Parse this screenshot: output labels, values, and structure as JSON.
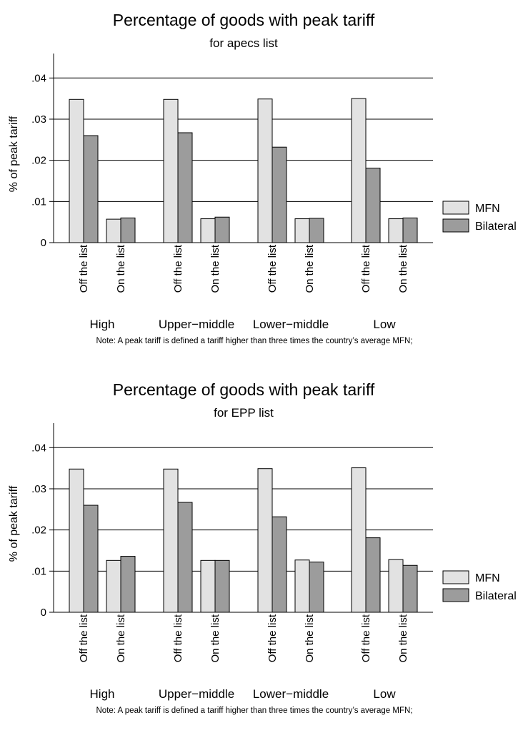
{
  "charts": [
    {
      "type": "bar",
      "title": "Percentage of goods with peak tariff",
      "subtitle": "for apecs list",
      "ylabel": "% of peak tariff",
      "yticks": [
        "0",
        ".01",
        ".02",
        ".03",
        ".04"
      ],
      "ylim": [
        0,
        0.043
      ],
      "groups": [
        {
          "name": "High",
          "categories": [
            {
              "label": "Off the list",
              "mfn": 0.0348,
              "bilateral": 0.026
            },
            {
              "label": "On the list",
              "mfn": 0.0057,
              "bilateral": 0.006
            }
          ]
        },
        {
          "name": "Upper−middle",
          "categories": [
            {
              "label": "Off the list",
              "mfn": 0.0348,
              "bilateral": 0.0267
            },
            {
              "label": "On the list",
              "mfn": 0.0058,
              "bilateral": 0.0062
            }
          ]
        },
        {
          "name": "Lower−middle",
          "categories": [
            {
              "label": "Off the list",
              "mfn": 0.0349,
              "bilateral": 0.0232
            },
            {
              "label": "On the list",
              "mfn": 0.0058,
              "bilateral": 0.0059
            }
          ]
        },
        {
          "name": "Low",
          "categories": [
            {
              "label": "Off the list",
              "mfn": 0.035,
              "bilateral": 0.0181
            },
            {
              "label": "On the list",
              "mfn": 0.0058,
              "bilateral": 0.006
            }
          ]
        }
      ],
      "legend": [
        {
          "label": "MFN",
          "color": "#e2e2e2"
        },
        {
          "label": "Bilateral",
          "color": "#9c9c9c"
        }
      ],
      "note": "Note: A peak tariff is defined a tariff higher than three times the country’s average MFN;"
    },
    {
      "type": "bar",
      "title": "Percentage of goods with peak tariff",
      "subtitle": "for EPP list",
      "ylabel": "% of peak tariff",
      "yticks": [
        "0",
        ".01",
        ".02",
        ".03",
        ".04"
      ],
      "ylim": [
        0,
        0.043
      ],
      "groups": [
        {
          "name": "High",
          "categories": [
            {
              "label": "Off the list",
              "mfn": 0.0348,
              "bilateral": 0.026
            },
            {
              "label": "On the list",
              "mfn": 0.0126,
              "bilateral": 0.0136
            }
          ]
        },
        {
          "name": "Upper−middle",
          "categories": [
            {
              "label": "Off the list",
              "mfn": 0.0348,
              "bilateral": 0.0267
            },
            {
              "label": "On the list",
              "mfn": 0.0126,
              "bilateral": 0.0126
            }
          ]
        },
        {
          "name": "Lower−middle",
          "categories": [
            {
              "label": "Off the list",
              "mfn": 0.0349,
              "bilateral": 0.0232
            },
            {
              "label": "On the list",
              "mfn": 0.0127,
              "bilateral": 0.0122
            }
          ]
        },
        {
          "name": "Low",
          "categories": [
            {
              "label": "Off the list",
              "mfn": 0.0351,
              "bilateral": 0.0181
            },
            {
              "label": "On the list",
              "mfn": 0.0128,
              "bilateral": 0.0114
            }
          ]
        }
      ],
      "legend": [
        {
          "label": "MFN",
          "color": "#e2e2e2"
        },
        {
          "label": "Bilateral",
          "color": "#9c9c9c"
        }
      ],
      "note": "Note: A peak tariff is defined a tariff higher than three times the country’s average MFN;"
    }
  ]
}
